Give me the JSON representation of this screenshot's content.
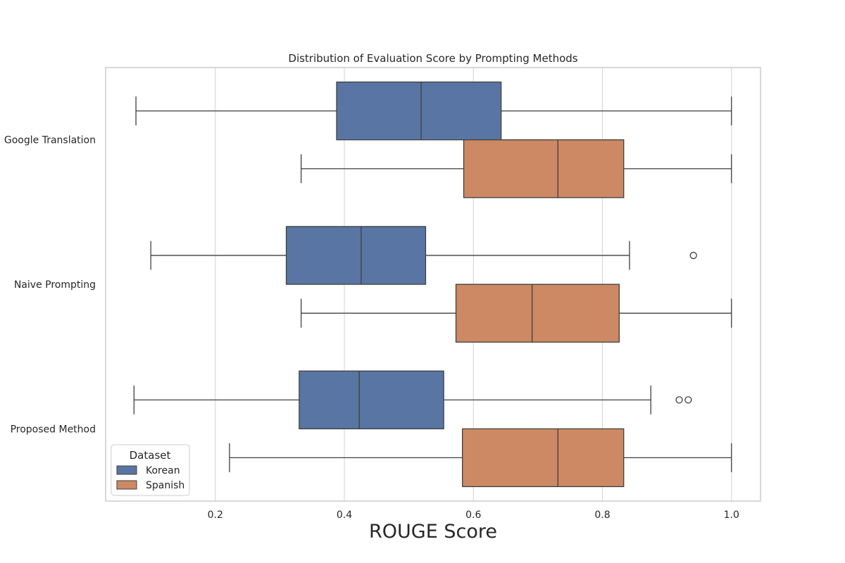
{
  "chart_data": {
    "type": "boxplot",
    "title": "Distribution of Evaluation Score by Prompting Methods",
    "xlabel": "ROUGE Score",
    "ylabel": "",
    "orientation": "horizontal",
    "xlim": [
      0.03,
      1.045
    ],
    "xticks": [
      0.2,
      0.4,
      0.6,
      0.8,
      1.0
    ],
    "xtick_labels": [
      "0.2",
      "0.4",
      "0.6",
      "0.8",
      "1.0"
    ],
    "grid": "vertical",
    "categories": [
      "Google Translation",
      "Naive Prompting",
      "Proposed Method"
    ],
    "legend": {
      "title": "Dataset",
      "placement": "lower-left"
    },
    "series": [
      {
        "name": "Korean",
        "color": "#5875a4",
        "boxes": [
          {
            "whisker_low": 0.077,
            "q1": 0.388,
            "median": 0.519,
            "q3": 0.643,
            "whisker_high": 1.0,
            "outliers": []
          },
          {
            "whisker_low": 0.1,
            "q1": 0.31,
            "median": 0.426,
            "q3": 0.526,
            "whisker_high": 0.842,
            "outliers": [
              0.941
            ]
          },
          {
            "whisker_low": 0.074,
            "q1": 0.33,
            "median": 0.423,
            "q3": 0.554,
            "whisker_high": 0.875,
            "outliers": [
              0.919,
              0.933
            ]
          }
        ]
      },
      {
        "name": "Spanish",
        "color": "#cc8963",
        "boxes": [
          {
            "whisker_low": 0.333,
            "q1": 0.585,
            "median": 0.731,
            "q3": 0.833,
            "whisker_high": 1.0,
            "outliers": []
          },
          {
            "whisker_low": 0.333,
            "q1": 0.573,
            "median": 0.691,
            "q3": 0.826,
            "whisker_high": 1.0,
            "outliers": []
          },
          {
            "whisker_low": 0.222,
            "q1": 0.583,
            "median": 0.731,
            "q3": 0.833,
            "whisker_high": 1.0,
            "outliers": []
          }
        ]
      }
    ]
  }
}
